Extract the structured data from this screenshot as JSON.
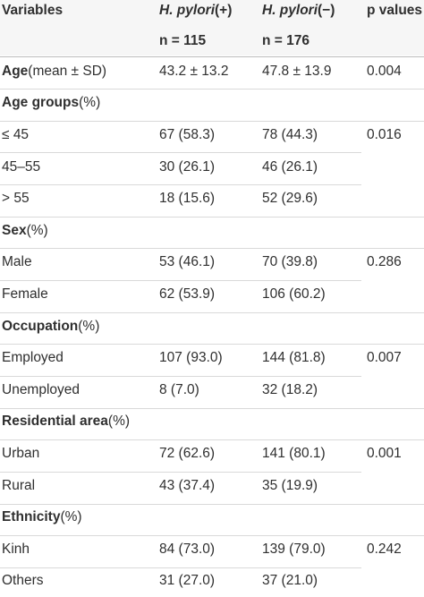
{
  "header": {
    "variables": "Variables",
    "pos_name": "H. pylori",
    "pos_sign": " (+)",
    "neg_name": "H. pylori",
    "neg_sign": " (−)",
    "pvalues": "p values",
    "pos_n": "n = 115",
    "neg_n": "n = 176"
  },
  "age": {
    "label": "Age",
    "unit": " (mean ± SD)",
    "pos": "43.2 ± 13.2",
    "neg": "47.8 ± 13.9",
    "p": "0.004"
  },
  "age_groups": {
    "label": "Age groups",
    "unit": " (%)",
    "rows": [
      {
        "label": "≤ 45",
        "pos": "67 (58.3)",
        "neg": "78 (44.3)",
        "p": "0.016"
      },
      {
        "label": "45–55",
        "pos": "30 (26.1)",
        "neg": "46 (26.1)",
        "p": ""
      },
      {
        "label": "> 55",
        "pos": "18 (15.6)",
        "neg": "52 (29.6)",
        "p": ""
      }
    ]
  },
  "sex": {
    "label": "Sex",
    "unit": " (%)",
    "rows": [
      {
        "label": "Male",
        "pos": "53 (46.1)",
        "neg": "70 (39.8)",
        "p": "0.286"
      },
      {
        "label": "Female",
        "pos": "62 (53.9)",
        "neg": "106 (60.2)",
        "p": ""
      }
    ]
  },
  "occupation": {
    "label": "Occupation",
    "unit": " (%)",
    "rows": [
      {
        "label": "Employed",
        "pos": "107 (93.0)",
        "neg": "144 (81.8)",
        "p": "0.007"
      },
      {
        "label": "Unemployed",
        "pos": "8 (7.0)",
        "neg": "32 (18.2)",
        "p": ""
      }
    ]
  },
  "residential": {
    "label": "Residential area",
    "unit": " (%)",
    "rows": [
      {
        "label": "Urban",
        "pos": "72 (62.6)",
        "neg": "141 (80.1)",
        "p": "0.001"
      },
      {
        "label": "Rural",
        "pos": "43 (37.4)",
        "neg": "35 (19.9)",
        "p": ""
      }
    ]
  },
  "ethnicity": {
    "label": "Ethnicity",
    "unit": " (%)",
    "rows": [
      {
        "label": "Kinh",
        "pos": "84 (73.0)",
        "neg": "139 (79.0)",
        "p": "0.242"
      },
      {
        "label": "Others",
        "pos": "31 (27.0)",
        "neg": "37 (21.0)",
        "p": ""
      }
    ]
  }
}
